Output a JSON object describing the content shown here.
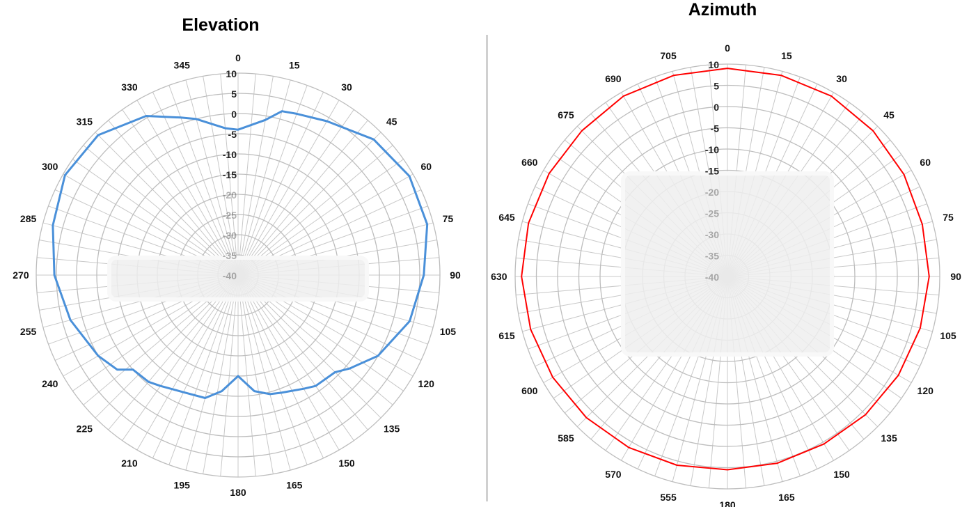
{
  "chart_data": [
    {
      "type": "polar-line",
      "title": "Elevation",
      "angle_labels": [
        "0",
        "15",
        "30",
        "45",
        "60",
        "75",
        "90",
        "105",
        "120",
        "135",
        "150",
        "165",
        "180",
        "195",
        "210",
        "225",
        "240",
        "255",
        "270",
        "285",
        "300",
        "315",
        "330",
        "345"
      ],
      "radial_ticks": [
        "10",
        "5",
        "0",
        "-5",
        "-10",
        "-15",
        "-20",
        "-25",
        "-30",
        "-35",
        "-40"
      ],
      "rlim": [
        -40,
        10
      ],
      "grid": true,
      "color": "#4a90d9",
      "angles": [
        0,
        10,
        15,
        20,
        30,
        45,
        60,
        75,
        90,
        105,
        120,
        130,
        135,
        145,
        150,
        160,
        165,
        172,
        180,
        188,
        195,
        205,
        215,
        220,
        228,
        232,
        240,
        255,
        270,
        285,
        300,
        315,
        330,
        340,
        345,
        355
      ],
      "values": [
        -4,
        -1,
        2,
        2.5,
        4,
        7.5,
        9,
        8.5,
        6,
        4,
        0,
        -4,
        -6,
        -6.5,
        -7.5,
        -9,
        -9.5,
        -11,
        -15,
        -11,
        -8.5,
        -8,
        -6.5,
        -5.5,
        -5,
        -2,
        0,
        3,
        5.5,
        7.5,
        9.5,
        9,
        5.5,
        1.5,
        0,
        -3.5
      ]
    },
    {
      "type": "polar-line",
      "title": "Azimuth",
      "angle_labels": [
        "0",
        "15",
        "30",
        "45",
        "60",
        "75",
        "90",
        "105",
        "120",
        "135",
        "150",
        "165",
        "180",
        "555",
        "570",
        "585",
        "600",
        "615",
        "630",
        "645",
        "660",
        "675",
        "690",
        "705"
      ],
      "radial_ticks": [
        "10",
        "5",
        "0",
        "-5",
        "-10",
        "-15",
        "-20",
        "-25",
        "-30",
        "-35",
        "-40"
      ],
      "rlim": [
        -40,
        10
      ],
      "grid": true,
      "color": "#ff0000",
      "angles": [
        0,
        15,
        30,
        45,
        60,
        75,
        90,
        105,
        120,
        135,
        150,
        165,
        180,
        195,
        210,
        225,
        240,
        255,
        270,
        285,
        300,
        315,
        330,
        345
      ],
      "values": [
        9,
        9,
        9,
        8.5,
        8,
        7.5,
        7.5,
        7,
        6.5,
        6,
        5.5,
        5.5,
        5.5,
        6,
        6.5,
        7,
        7.5,
        8,
        8.5,
        8.5,
        8.5,
        8.5,
        9,
        9
      ]
    }
  ]
}
